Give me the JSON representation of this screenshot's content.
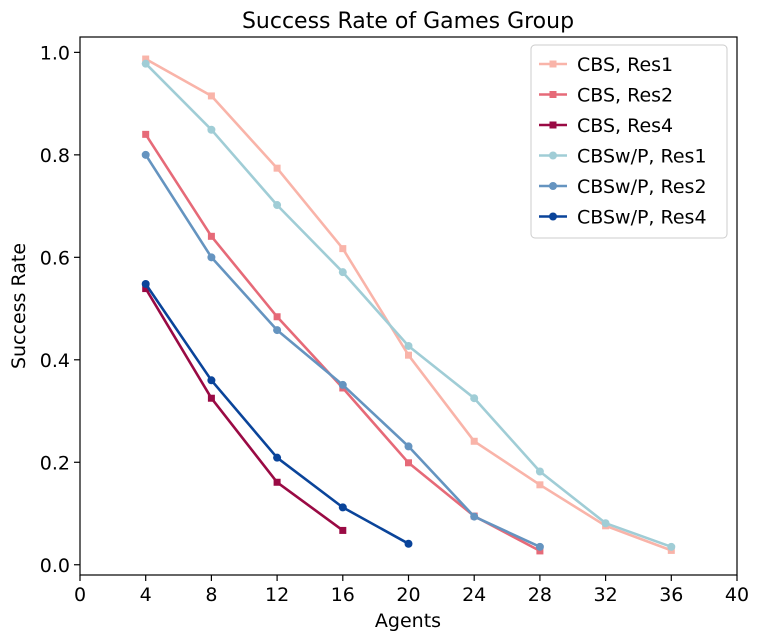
{
  "chart_data": {
    "type": "line",
    "title": "Success Rate of Games Group",
    "xlabel": "Agents",
    "ylabel": "Success Rate",
    "xlim": [
      0,
      40
    ],
    "ylim": [
      -0.02,
      1.03
    ],
    "xticks": [
      0,
      4,
      8,
      12,
      16,
      20,
      24,
      28,
      32,
      36,
      40
    ],
    "xtick_labels": [
      "0",
      "4",
      "8",
      "12",
      "16",
      "20",
      "24",
      "28",
      "32",
      "36",
      "40"
    ],
    "yticks": [
      0.0,
      0.2,
      0.4,
      0.6,
      0.8,
      1.0
    ],
    "ytick_labels": [
      "0.0",
      "0.2",
      "0.4",
      "0.6",
      "0.8",
      "1.0"
    ],
    "grid": false,
    "legend_position": "top-right",
    "series": [
      {
        "name": "CBS, Res1",
        "color": "#f9b4a9",
        "marker": "square",
        "x": [
          4,
          8,
          12,
          16,
          20,
          24,
          28,
          32,
          36
        ],
        "y": [
          0.987,
          0.915,
          0.774,
          0.617,
          0.409,
          0.241,
          0.156,
          0.076,
          0.028
        ]
      },
      {
        "name": "CBS, Res2",
        "color": "#e66a78",
        "marker": "square",
        "x": [
          4,
          8,
          12,
          16,
          20,
          24,
          28
        ],
        "y": [
          0.84,
          0.641,
          0.484,
          0.345,
          0.199,
          0.095,
          0.027
        ]
      },
      {
        "name": "CBS, Res4",
        "color": "#9a0a44",
        "marker": "square",
        "x": [
          4,
          8,
          12,
          16
        ],
        "y": [
          0.539,
          0.325,
          0.161,
          0.067
        ]
      },
      {
        "name": "CBSw/P, Res1",
        "color": "#a0cdd6",
        "marker": "circle",
        "x": [
          4,
          8,
          12,
          16,
          20,
          24,
          28,
          32,
          36
        ],
        "y": [
          0.978,
          0.849,
          0.702,
          0.571,
          0.427,
          0.325,
          0.182,
          0.081,
          0.035
        ]
      },
      {
        "name": "CBSw/P, Res2",
        "color": "#6594c0",
        "marker": "circle",
        "x": [
          4,
          8,
          12,
          16,
          20,
          24,
          28
        ],
        "y": [
          0.8,
          0.6,
          0.458,
          0.351,
          0.231,
          0.094,
          0.035
        ]
      },
      {
        "name": "CBSw/P, Res4",
        "color": "#0a449a",
        "marker": "circle",
        "x": [
          4,
          8,
          12,
          16,
          20
        ],
        "y": [
          0.548,
          0.36,
          0.209,
          0.112,
          0.041
        ]
      }
    ]
  }
}
